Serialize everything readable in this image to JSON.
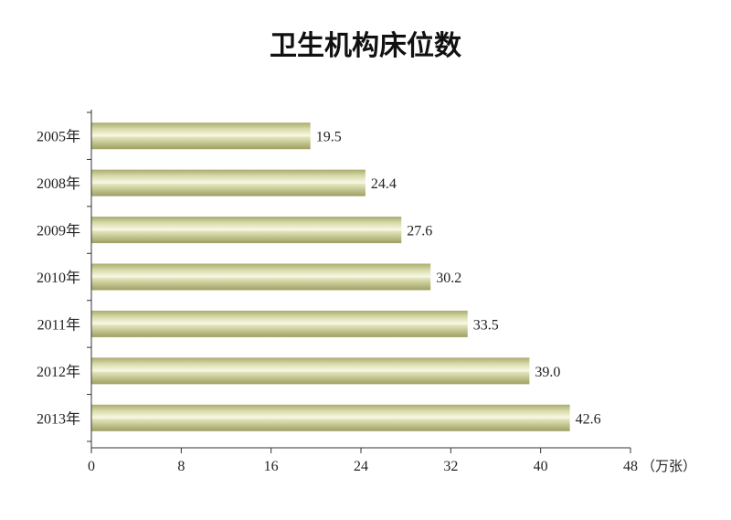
{
  "chart_data": {
    "type": "bar",
    "orientation": "horizontal",
    "title": "卫生机构床位数",
    "categories": [
      "2005年",
      "2008年",
      "2009年",
      "2010年",
      "2011年",
      "2012年",
      "2013年"
    ],
    "values": [
      19.5,
      24.4,
      27.6,
      30.2,
      33.5,
      39.0,
      42.6
    ],
    "value_labels": [
      "19.5",
      "24.4",
      "27.6",
      "30.2",
      "33.5",
      "39.0",
      "42.6"
    ],
    "xlim": [
      0,
      48
    ],
    "xticks": [
      "0",
      "8",
      "16",
      "24",
      "32",
      "40",
      "48"
    ],
    "xunit": "（万张）",
    "grid": false,
    "bar_color": "#c9cb95"
  }
}
